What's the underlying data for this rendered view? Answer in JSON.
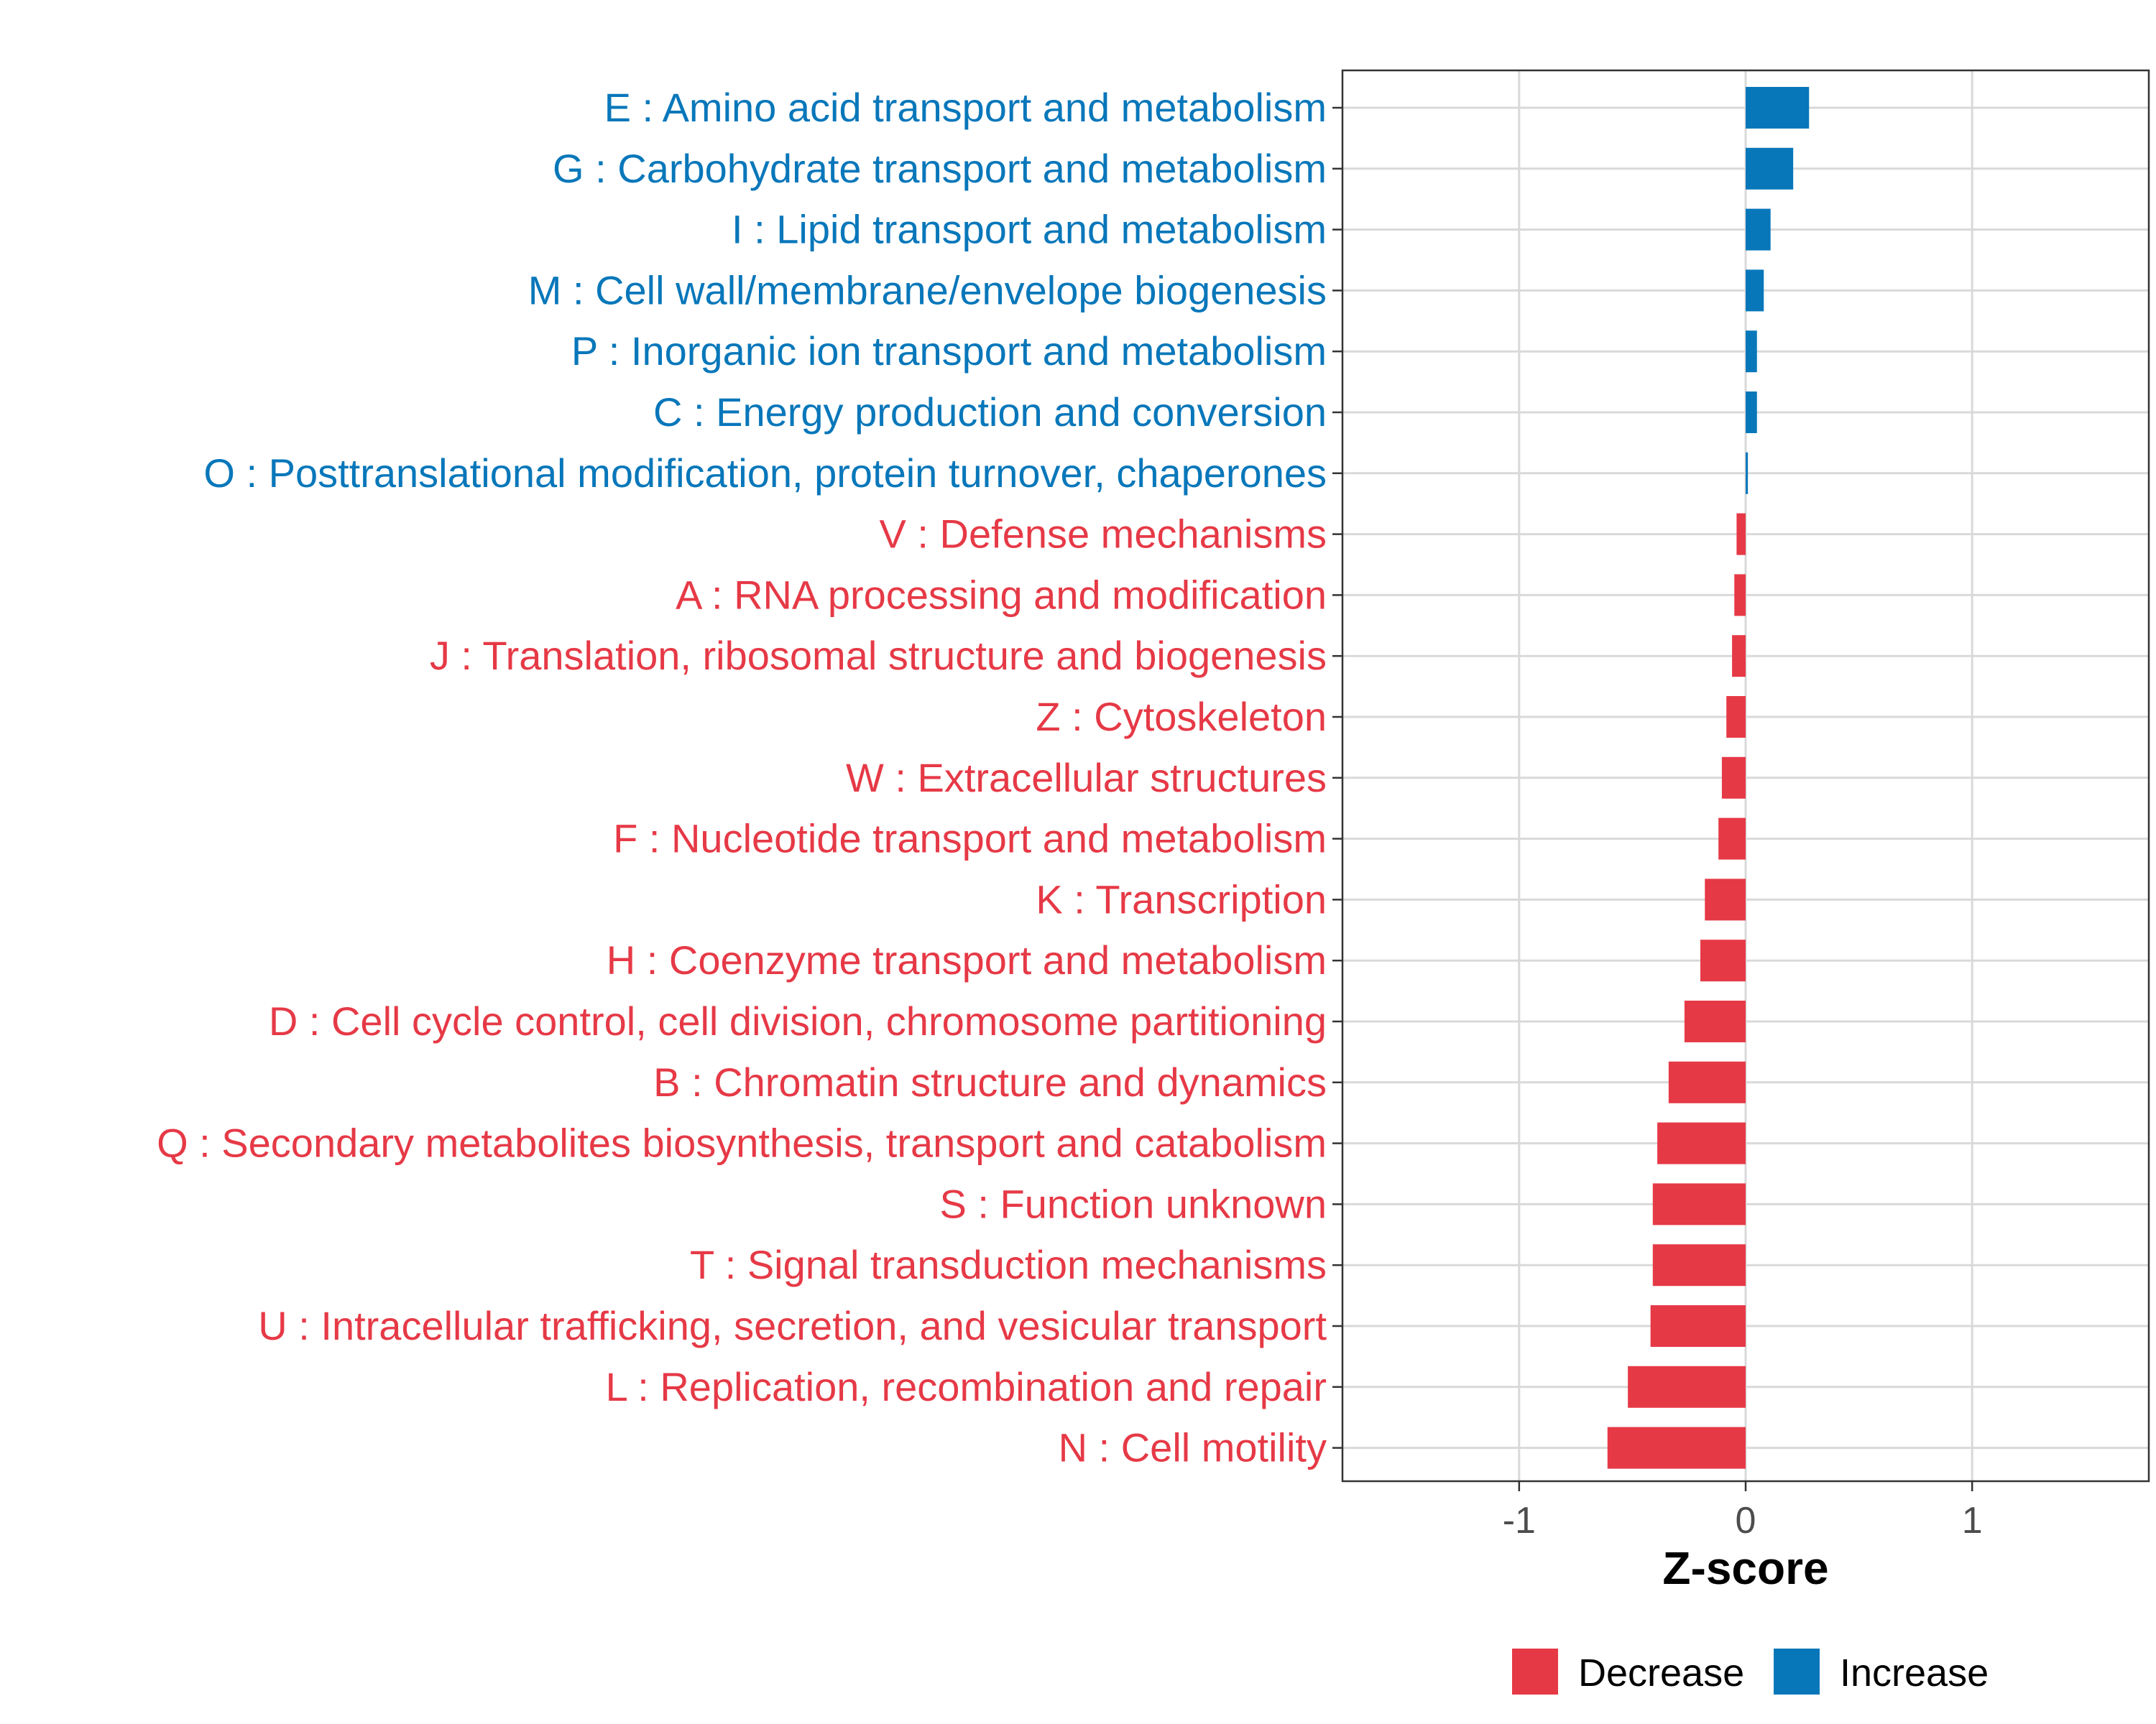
{
  "colors": {
    "increase": "#0877BA",
    "decrease": "#E63946",
    "grid": "#D9D9D9",
    "panel_border": "#333333"
  },
  "chart_data": {
    "type": "bar",
    "orientation": "horizontal",
    "xlabel": "Z-score",
    "ylabel": "",
    "xlim": [
      -1.78,
      1.78
    ],
    "xticks": [
      -1,
      0,
      1
    ],
    "xtick_labels": [
      "-1",
      "0",
      "1"
    ],
    "grid": true,
    "legend": {
      "placement": "bottom",
      "entries": [
        {
          "label": "Decrease",
          "key": "decrease"
        },
        {
          "label": "Increase",
          "key": "increase"
        }
      ]
    },
    "categories": [
      "E : Amino acid transport and metabolism",
      "G : Carbohydrate transport and metabolism",
      "I : Lipid transport and metabolism",
      "M : Cell wall/membrane/envelope biogenesis",
      "P : Inorganic ion transport and metabolism",
      "C : Energy production and conversion",
      "O : Posttranslational modification, protein turnover, chaperones",
      "V : Defense mechanisms",
      "A : RNA processing and modification",
      "J : Translation, ribosomal structure and biogenesis",
      "Z : Cytoskeleton",
      "W : Extracellular structures",
      "F : Nucleotide transport and metabolism",
      "K : Transcription",
      "H : Coenzyme transport and metabolism",
      "D : Cell cycle control, cell division, chromosome partitioning",
      "B : Chromatin structure and dynamics",
      "Q : Secondary metabolites biosynthesis, transport and catabolism",
      "S : Function unknown",
      "T : Signal transduction mechanisms",
      "U : Intracellular trafficking, secretion, and vesicular transport",
      "L : Replication, recombination and repair",
      "N : Cell motility"
    ],
    "values": [
      0.28,
      0.21,
      0.11,
      0.08,
      0.05,
      0.05,
      0.01,
      -0.04,
      -0.05,
      -0.06,
      -0.085,
      -0.105,
      -0.12,
      -0.18,
      -0.2,
      -0.27,
      -0.34,
      -0.39,
      -0.41,
      -0.41,
      -0.42,
      -0.52,
      -0.61
    ],
    "groups": [
      "increase",
      "increase",
      "increase",
      "increase",
      "increase",
      "increase",
      "increase",
      "decrease",
      "decrease",
      "decrease",
      "decrease",
      "decrease",
      "decrease",
      "decrease",
      "decrease",
      "decrease",
      "decrease",
      "decrease",
      "decrease",
      "decrease",
      "decrease",
      "decrease",
      "decrease"
    ]
  }
}
